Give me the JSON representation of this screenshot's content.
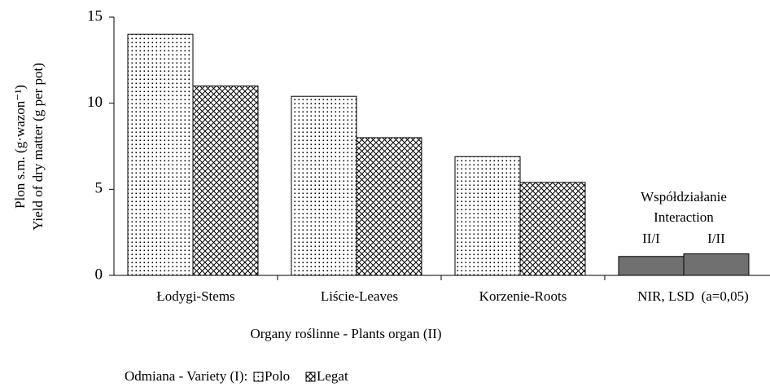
{
  "chart_data": {
    "type": "bar",
    "y_label_lines": [
      "Plon s.m. (g·wazon⁻¹)",
      "Yield of dry matter (g per pot)"
    ],
    "x_label": "Organy roślinne - Plants organ (II)",
    "legend_title": "Odmiana - Variety (I):",
    "categories": [
      "Łodygi-Stems",
      "Liście-Leaves",
      "Korzenie-Roots",
      "NIR, LSD  (a=0,05)"
    ],
    "series": [
      {
        "name": "Polo",
        "pattern": "dots",
        "values": [
          14,
          10.4,
          6.9,
          null
        ]
      },
      {
        "name": "Legat",
        "pattern": "crosshatch",
        "values": [
          11,
          8,
          5.4,
          null
        ]
      }
    ],
    "lsd": {
      "annotation": [
        "Współdziałanie",
        "Interaction"
      ],
      "labels": [
        "II/I",
        "I/II"
      ],
      "values": [
        1.1,
        1.25
      ],
      "color": "#707070"
    },
    "ylim": [
      0,
      15
    ],
    "yticks": [
      0,
      5,
      10,
      15
    ]
  }
}
